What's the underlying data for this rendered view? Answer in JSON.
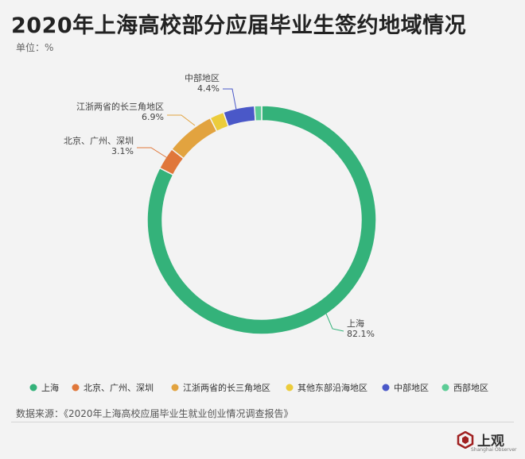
{
  "title": "2020年上海高校部分应届毕业生签约地域情况",
  "unit": "单位：%",
  "source": "数据来源：《2020年上海高校应届毕业生就业创业情况调查报告》",
  "logo": {
    "text": "上观",
    "subtext": "Shanghai Observer"
  },
  "chart_data": {
    "type": "pie",
    "donut": true,
    "unit": "%",
    "legend_position": "bottom",
    "slices": [
      {
        "label": "上海",
        "value": 82.1,
        "color": "#34b27a",
        "show_label": true
      },
      {
        "label": "北京、广州、深圳",
        "value": 3.1,
        "color": "#e0773a",
        "show_label": true
      },
      {
        "label": "江浙两省的长三角地区",
        "value": 6.9,
        "color": "#e2a33f",
        "show_label": true
      },
      {
        "label": "其他东部沿海地区",
        "value": 2.0,
        "color": "#eccc3b",
        "show_label": false
      },
      {
        "label": "中部地区",
        "value": 4.4,
        "color": "#4a58c8",
        "show_label": true
      },
      {
        "label": "西部地区",
        "value": 1.0,
        "color": "#5ccc96",
        "show_label": false
      }
    ]
  }
}
